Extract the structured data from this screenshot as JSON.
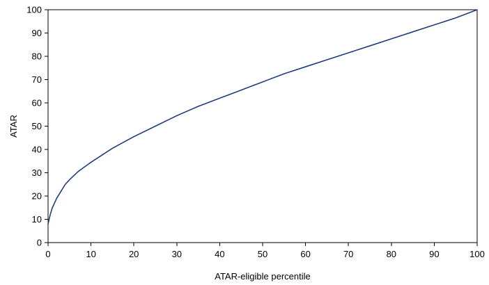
{
  "chart_data": {
    "type": "line",
    "title": "",
    "xlabel": "ATAR-eligible percentile",
    "ylabel": "ATAR",
    "xlim": [
      0,
      100
    ],
    "ylim": [
      0,
      100
    ],
    "xticks": [
      0,
      10,
      20,
      30,
      40,
      50,
      60,
      70,
      80,
      90,
      100
    ],
    "yticks": [
      0,
      10,
      20,
      30,
      40,
      50,
      60,
      70,
      80,
      90,
      100
    ],
    "grid": false,
    "legend": "none",
    "series": [
      {
        "color": "#1f3d7a",
        "x": [
          0,
          0.5,
          1,
          2,
          3,
          4,
          5,
          7,
          10,
          15,
          20,
          25,
          30,
          35,
          40,
          45,
          50,
          55,
          60,
          65,
          70,
          75,
          80,
          85,
          90,
          95,
          100
        ],
        "y": [
          8,
          12,
          15,
          19,
          22,
          25,
          27,
          30.5,
          34.5,
          40.5,
          45.5,
          50,
          54.5,
          58.5,
          62,
          65.5,
          69,
          72.5,
          75.5,
          78.5,
          81.5,
          84.5,
          87.5,
          90.5,
          93.5,
          96.5,
          100
        ]
      }
    ]
  }
}
